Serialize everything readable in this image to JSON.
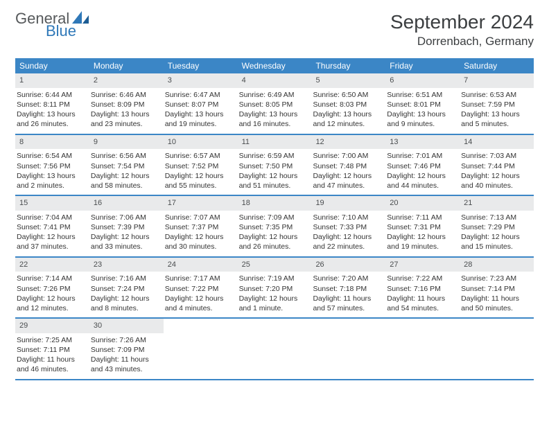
{
  "logo": {
    "part1": "General",
    "part2": "Blue"
  },
  "title": "September 2024",
  "location": "Dorrenbach, Germany",
  "colors": {
    "header_bg": "#3b86c6",
    "header_text": "#ffffff",
    "daynum_bg": "#e9eaeb",
    "rule": "#3b86c6",
    "text": "#333333",
    "logo_gray": "#56595b",
    "logo_blue": "#2f78b8"
  },
  "weekdays": [
    "Sunday",
    "Monday",
    "Tuesday",
    "Wednesday",
    "Thursday",
    "Friday",
    "Saturday"
  ],
  "weeks": [
    [
      {
        "n": "1",
        "sr": "Sunrise: 6:44 AM",
        "ss": "Sunset: 8:11 PM",
        "d1": "Daylight: 13 hours",
        "d2": "and 26 minutes."
      },
      {
        "n": "2",
        "sr": "Sunrise: 6:46 AM",
        "ss": "Sunset: 8:09 PM",
        "d1": "Daylight: 13 hours",
        "d2": "and 23 minutes."
      },
      {
        "n": "3",
        "sr": "Sunrise: 6:47 AM",
        "ss": "Sunset: 8:07 PM",
        "d1": "Daylight: 13 hours",
        "d2": "and 19 minutes."
      },
      {
        "n": "4",
        "sr": "Sunrise: 6:49 AM",
        "ss": "Sunset: 8:05 PM",
        "d1": "Daylight: 13 hours",
        "d2": "and 16 minutes."
      },
      {
        "n": "5",
        "sr": "Sunrise: 6:50 AM",
        "ss": "Sunset: 8:03 PM",
        "d1": "Daylight: 13 hours",
        "d2": "and 12 minutes."
      },
      {
        "n": "6",
        "sr": "Sunrise: 6:51 AM",
        "ss": "Sunset: 8:01 PM",
        "d1": "Daylight: 13 hours",
        "d2": "and 9 minutes."
      },
      {
        "n": "7",
        "sr": "Sunrise: 6:53 AM",
        "ss": "Sunset: 7:59 PM",
        "d1": "Daylight: 13 hours",
        "d2": "and 5 minutes."
      }
    ],
    [
      {
        "n": "8",
        "sr": "Sunrise: 6:54 AM",
        "ss": "Sunset: 7:56 PM",
        "d1": "Daylight: 13 hours",
        "d2": "and 2 minutes."
      },
      {
        "n": "9",
        "sr": "Sunrise: 6:56 AM",
        "ss": "Sunset: 7:54 PM",
        "d1": "Daylight: 12 hours",
        "d2": "and 58 minutes."
      },
      {
        "n": "10",
        "sr": "Sunrise: 6:57 AM",
        "ss": "Sunset: 7:52 PM",
        "d1": "Daylight: 12 hours",
        "d2": "and 55 minutes."
      },
      {
        "n": "11",
        "sr": "Sunrise: 6:59 AM",
        "ss": "Sunset: 7:50 PM",
        "d1": "Daylight: 12 hours",
        "d2": "and 51 minutes."
      },
      {
        "n": "12",
        "sr": "Sunrise: 7:00 AM",
        "ss": "Sunset: 7:48 PM",
        "d1": "Daylight: 12 hours",
        "d2": "and 47 minutes."
      },
      {
        "n": "13",
        "sr": "Sunrise: 7:01 AM",
        "ss": "Sunset: 7:46 PM",
        "d1": "Daylight: 12 hours",
        "d2": "and 44 minutes."
      },
      {
        "n": "14",
        "sr": "Sunrise: 7:03 AM",
        "ss": "Sunset: 7:44 PM",
        "d1": "Daylight: 12 hours",
        "d2": "and 40 minutes."
      }
    ],
    [
      {
        "n": "15",
        "sr": "Sunrise: 7:04 AM",
        "ss": "Sunset: 7:41 PM",
        "d1": "Daylight: 12 hours",
        "d2": "and 37 minutes."
      },
      {
        "n": "16",
        "sr": "Sunrise: 7:06 AM",
        "ss": "Sunset: 7:39 PM",
        "d1": "Daylight: 12 hours",
        "d2": "and 33 minutes."
      },
      {
        "n": "17",
        "sr": "Sunrise: 7:07 AM",
        "ss": "Sunset: 7:37 PM",
        "d1": "Daylight: 12 hours",
        "d2": "and 30 minutes."
      },
      {
        "n": "18",
        "sr": "Sunrise: 7:09 AM",
        "ss": "Sunset: 7:35 PM",
        "d1": "Daylight: 12 hours",
        "d2": "and 26 minutes."
      },
      {
        "n": "19",
        "sr": "Sunrise: 7:10 AM",
        "ss": "Sunset: 7:33 PM",
        "d1": "Daylight: 12 hours",
        "d2": "and 22 minutes."
      },
      {
        "n": "20",
        "sr": "Sunrise: 7:11 AM",
        "ss": "Sunset: 7:31 PM",
        "d1": "Daylight: 12 hours",
        "d2": "and 19 minutes."
      },
      {
        "n": "21",
        "sr": "Sunrise: 7:13 AM",
        "ss": "Sunset: 7:29 PM",
        "d1": "Daylight: 12 hours",
        "d2": "and 15 minutes."
      }
    ],
    [
      {
        "n": "22",
        "sr": "Sunrise: 7:14 AM",
        "ss": "Sunset: 7:26 PM",
        "d1": "Daylight: 12 hours",
        "d2": "and 12 minutes."
      },
      {
        "n": "23",
        "sr": "Sunrise: 7:16 AM",
        "ss": "Sunset: 7:24 PM",
        "d1": "Daylight: 12 hours",
        "d2": "and 8 minutes."
      },
      {
        "n": "24",
        "sr": "Sunrise: 7:17 AM",
        "ss": "Sunset: 7:22 PM",
        "d1": "Daylight: 12 hours",
        "d2": "and 4 minutes."
      },
      {
        "n": "25",
        "sr": "Sunrise: 7:19 AM",
        "ss": "Sunset: 7:20 PM",
        "d1": "Daylight: 12 hours",
        "d2": "and 1 minute."
      },
      {
        "n": "26",
        "sr": "Sunrise: 7:20 AM",
        "ss": "Sunset: 7:18 PM",
        "d1": "Daylight: 11 hours",
        "d2": "and 57 minutes."
      },
      {
        "n": "27",
        "sr": "Sunrise: 7:22 AM",
        "ss": "Sunset: 7:16 PM",
        "d1": "Daylight: 11 hours",
        "d2": "and 54 minutes."
      },
      {
        "n": "28",
        "sr": "Sunrise: 7:23 AM",
        "ss": "Sunset: 7:14 PM",
        "d1": "Daylight: 11 hours",
        "d2": "and 50 minutes."
      }
    ],
    [
      {
        "n": "29",
        "sr": "Sunrise: 7:25 AM",
        "ss": "Sunset: 7:11 PM",
        "d1": "Daylight: 11 hours",
        "d2": "and 46 minutes."
      },
      {
        "n": "30",
        "sr": "Sunrise: 7:26 AM",
        "ss": "Sunset: 7:09 PM",
        "d1": "Daylight: 11 hours",
        "d2": "and 43 minutes."
      },
      {
        "empty": true
      },
      {
        "empty": true
      },
      {
        "empty": true
      },
      {
        "empty": true
      },
      {
        "empty": true
      }
    ]
  ]
}
